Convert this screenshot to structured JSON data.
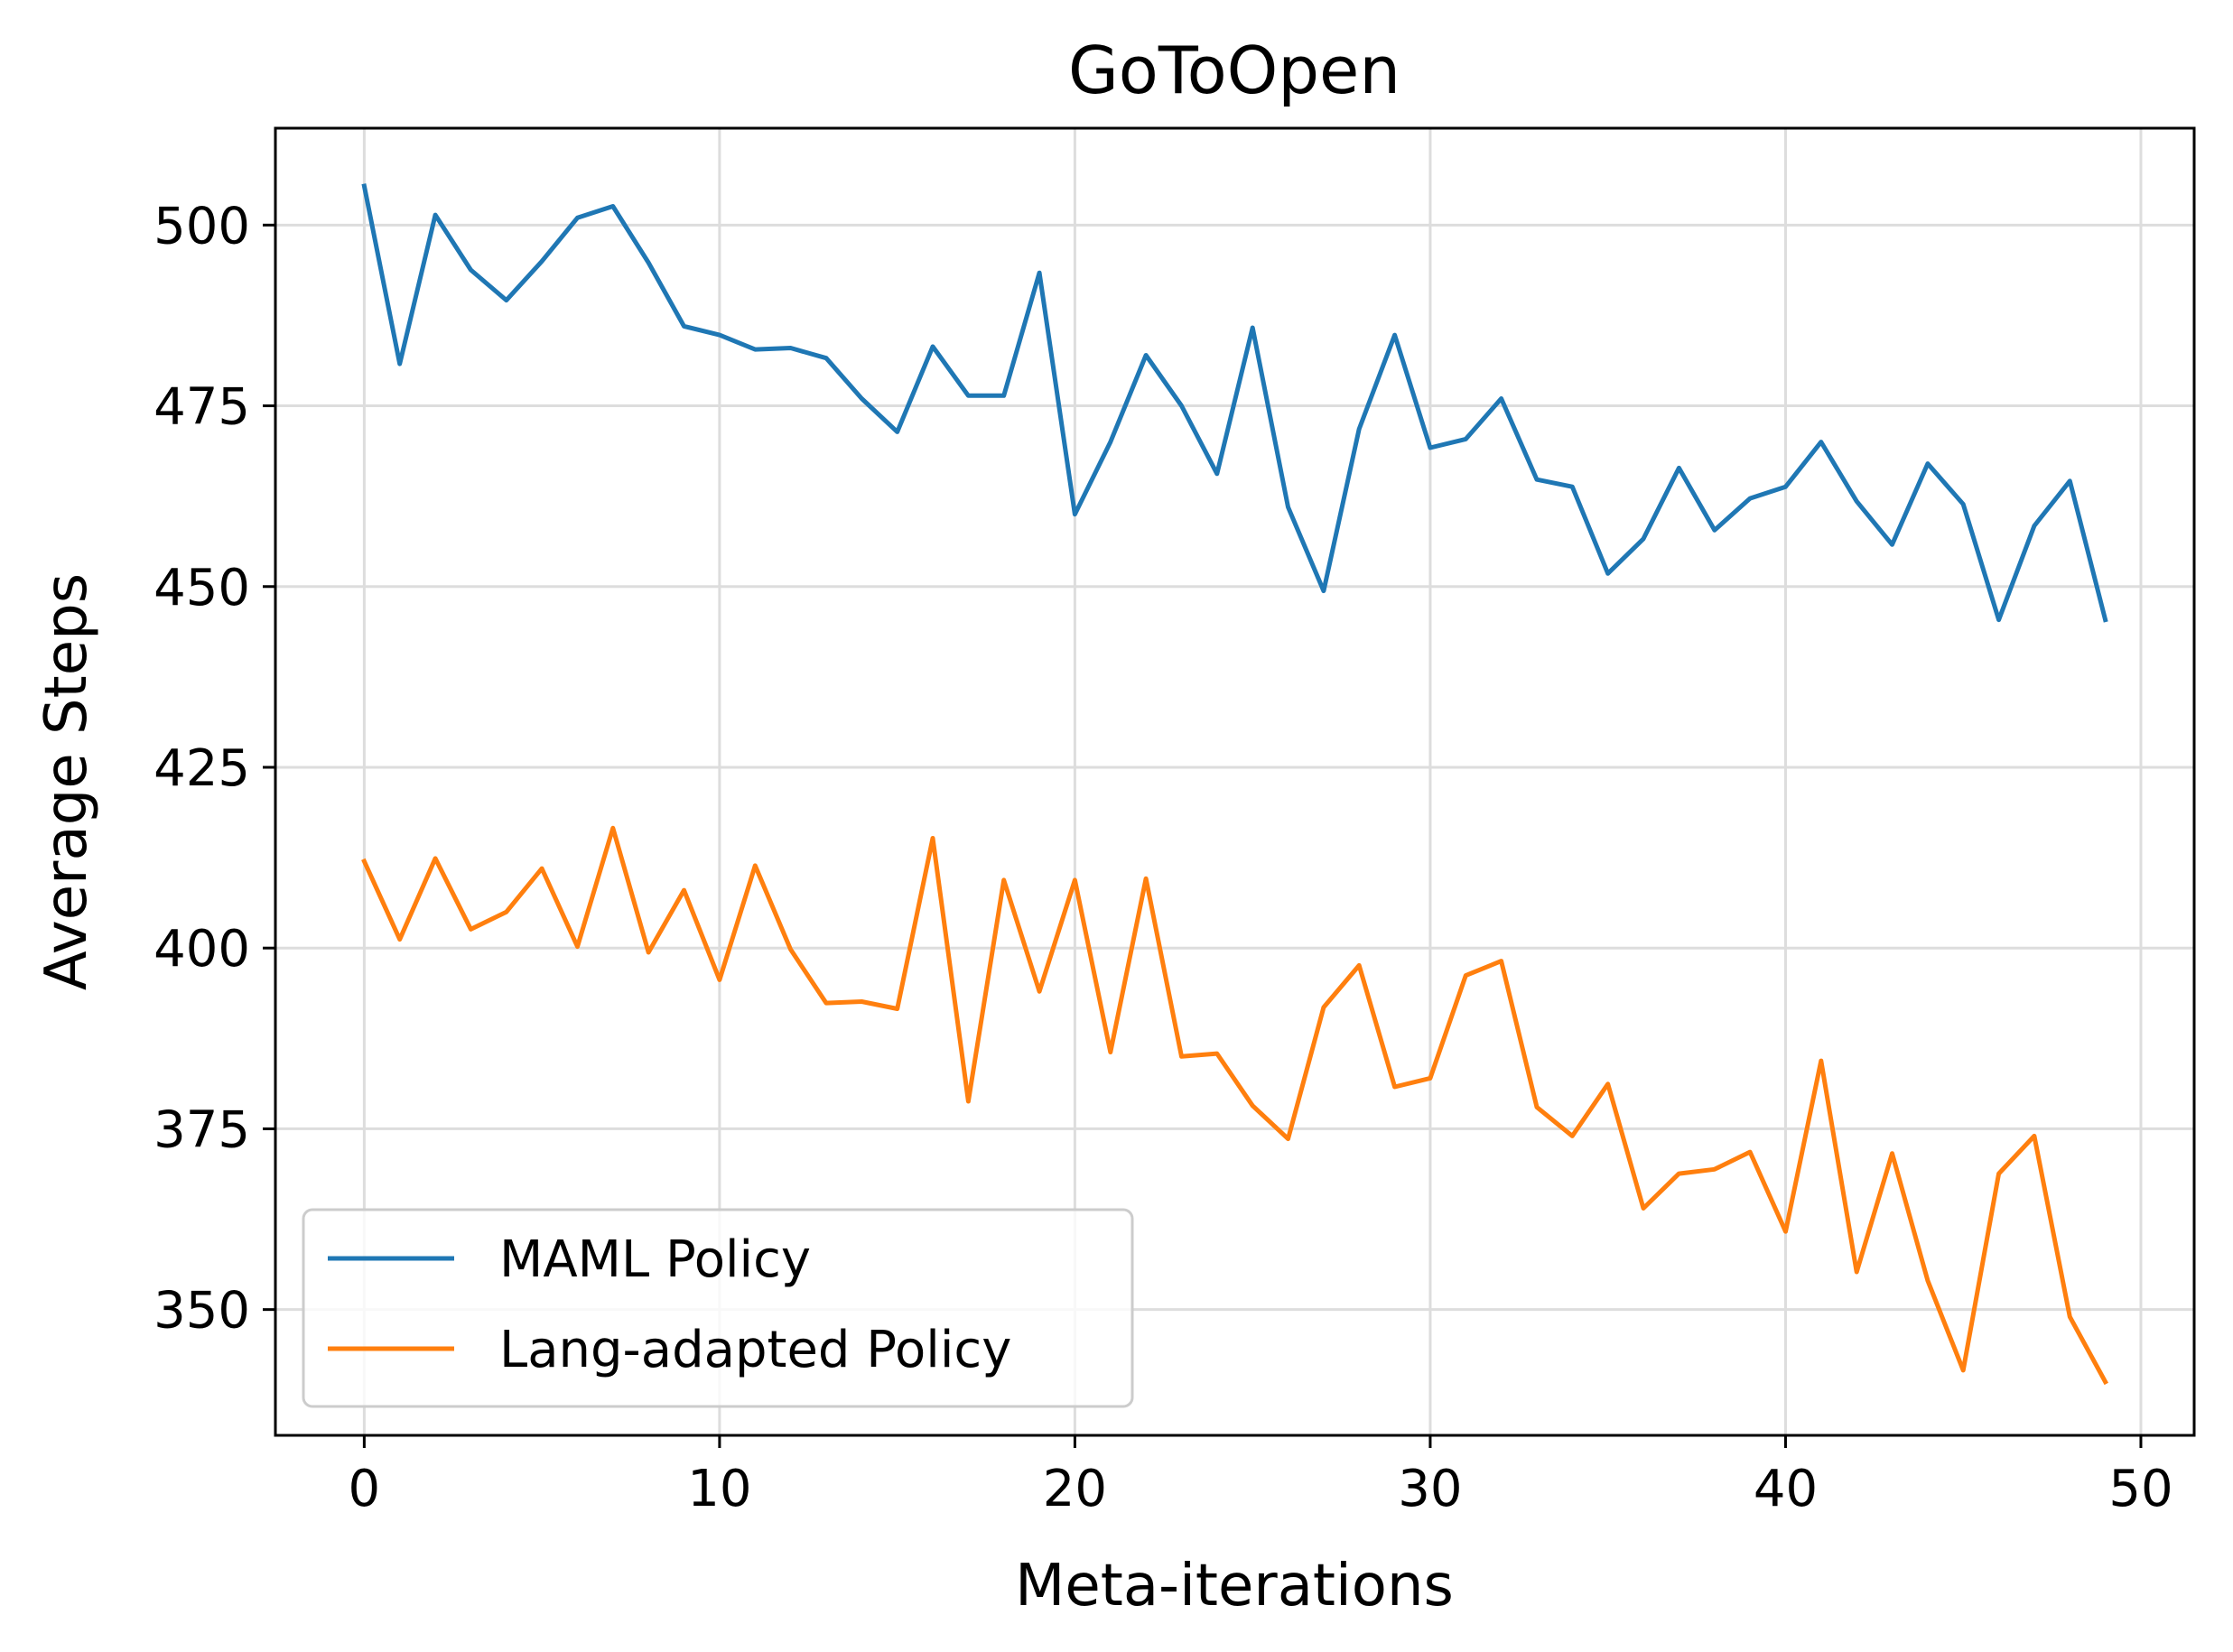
{
  "chart_data": {
    "type": "line",
    "title": "GoToOpen",
    "xlabel": "Meta-iterations",
    "ylabel": "Average Steps",
    "xlim": [
      -2.5,
      51.5
    ],
    "ylim": [
      332.6,
      513.4
    ],
    "xticks": [
      0,
      10,
      20,
      30,
      40,
      50
    ],
    "yticks": [
      350,
      375,
      400,
      425,
      450,
      475,
      500
    ],
    "grid": true,
    "legend_position": "lower-left",
    "x": [
      0,
      1,
      2,
      3,
      4,
      5,
      6,
      7,
      8,
      9,
      10,
      11,
      12,
      13,
      14,
      15,
      16,
      17,
      18,
      19,
      20,
      21,
      22,
      23,
      24,
      25,
      26,
      27,
      28,
      29,
      30,
      31,
      32,
      33,
      34,
      35,
      36,
      37,
      38,
      39,
      40,
      41,
      42,
      43,
      44,
      45,
      46,
      47,
      48,
      49
    ],
    "series": [
      {
        "name": "MAML Policy",
        "color": "#1f77b4",
        "values": [
          505.4,
          480.8,
          501.4,
          493.8,
          489.6,
          495.0,
          501.0,
          502.6,
          494.8,
          486.0,
          484.8,
          482.8,
          483.0,
          481.6,
          476.0,
          471.4,
          483.2,
          476.4,
          476.4,
          493.4,
          460.0,
          470.0,
          482.0,
          475.0,
          465.6,
          485.8,
          461.0,
          449.4,
          471.8,
          484.8,
          469.2,
          470.4,
          476.0,
          464.8,
          463.8,
          451.8,
          456.6,
          466.4,
          457.8,
          462.2,
          463.8,
          470.0,
          461.8,
          455.8,
          467.0,
          461.4,
          445.4,
          458.4,
          464.6,
          445.4
        ]
      },
      {
        "name": "Lang-adapted Policy",
        "color": "#ff7f0e",
        "values": [
          412.0,
          401.2,
          412.4,
          402.6,
          405.0,
          411.0,
          400.2,
          416.6,
          399.4,
          408.0,
          395.6,
          411.4,
          399.8,
          392.4,
          392.6,
          391.6,
          415.2,
          378.8,
          409.4,
          394.0,
          409.4,
          385.6,
          409.6,
          385.0,
          385.4,
          378.2,
          373.6,
          391.8,
          397.6,
          380.8,
          382.0,
          396.2,
          398.2,
          378.0,
          374.0,
          381.2,
          364.0,
          368.8,
          369.4,
          371.8,
          360.8,
          384.4,
          355.2,
          371.6,
          354.0,
          341.6,
          368.8,
          374.0,
          349.0,
          340.0
        ]
      }
    ]
  }
}
